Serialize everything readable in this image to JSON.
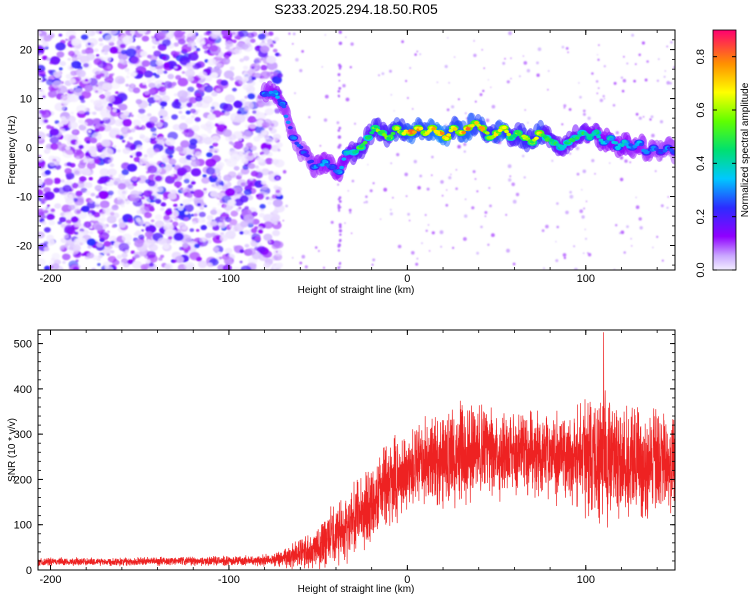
{
  "title": "S233.2025.294.18.50.R05",
  "colors": {
    "spectrum_low": "#9900ff",
    "snr_line": "#ee2222",
    "axes": "#000000"
  },
  "chart_data": [
    {
      "type": "heatmap",
      "name": "spectrogram",
      "xlabel": "Height of straight line (km)",
      "ylabel": "Frequency (Hz)",
      "xlim": [
        -207,
        150
      ],
      "ylim": [
        -25,
        24
      ],
      "xticks": [
        -200,
        -100,
        0,
        100
      ],
      "xticklabels": [
        "-200",
        "-100",
        "0",
        "100"
      ],
      "yticks": [
        -20,
        -10,
        0,
        10,
        20
      ],
      "yticklabels": [
        "-20",
        "-10",
        "0",
        "10",
        "20"
      ],
      "colorbar": {
        "label": "Normalized spectral amplitude",
        "range": [
          0.0,
          0.9
        ],
        "ticks": [
          0.0,
          0.2,
          0.4,
          0.6,
          0.8
        ],
        "ticklabels": [
          "0.0",
          "0.2",
          "0.4",
          "0.6",
          "0.8"
        ]
      },
      "noise_region_km": [
        -207,
        -77
      ],
      "signal_trace": {
        "x": [
          -80,
          -74,
          -70,
          -64,
          -58,
          -52,
          -46,
          -42,
          -38,
          -34,
          -30,
          -26,
          -22,
          -18,
          -14,
          -10,
          -6,
          -2,
          2,
          6,
          10,
          14,
          18,
          22,
          26,
          30,
          34,
          38,
          42,
          46,
          50,
          54,
          58,
          62,
          66,
          70,
          74,
          78,
          82,
          86,
          90,
          94,
          98,
          102,
          106,
          110,
          114,
          118,
          122,
          126,
          130,
          134,
          138,
          142,
          146,
          150
        ],
        "freq_hz": [
          11,
          11,
          9,
          2,
          -1,
          -4,
          -3,
          -4,
          -5,
          -1,
          -1,
          0,
          2,
          4,
          3,
          2,
          4,
          3,
          3,
          4,
          3,
          4,
          3,
          2,
          4,
          3,
          4,
          5,
          4,
          2,
          3,
          4,
          2,
          3,
          2,
          1,
          3,
          2,
          1,
          0,
          1,
          2,
          3,
          2,
          3,
          1,
          2,
          0,
          1,
          0,
          1,
          -1,
          0,
          -1,
          0,
          -1
        ],
        "amplitude": [
          0.3,
          0.35,
          0.3,
          0.3,
          0.25,
          0.3,
          0.35,
          0.3,
          0.35,
          0.4,
          0.5,
          0.55,
          0.5,
          0.6,
          0.55,
          0.6,
          0.7,
          0.65,
          0.8,
          0.75,
          0.7,
          0.8,
          0.85,
          0.8,
          0.7,
          0.75,
          0.8,
          0.7,
          0.75,
          0.6,
          0.7,
          0.8,
          0.55,
          0.6,
          0.65,
          0.6,
          0.75,
          0.5,
          0.55,
          0.45,
          0.5,
          0.45,
          0.5,
          0.4,
          0.45,
          0.35,
          0.4,
          0.35,
          0.4,
          0.3,
          0.35,
          0.3,
          0.3,
          0.25,
          0.3,
          0.25
        ]
      }
    },
    {
      "type": "line",
      "name": "snr",
      "xlabel": "Height of straight line (km)",
      "ylabel": "SNR (10 * v/v)",
      "xlim": [
        -207,
        150
      ],
      "ylim": [
        0,
        530
      ],
      "xticks": [
        -200,
        -100,
        0,
        100
      ],
      "xticklabels": [
        "-200",
        "-100",
        "0",
        "100"
      ],
      "yticks": [
        0,
        100,
        200,
        300,
        400,
        500
      ],
      "yticklabels": [
        "0",
        "100",
        "200",
        "300",
        "400",
        "500"
      ],
      "envelope": {
        "x": [
          -207,
          -100,
          -77,
          -60,
          -50,
          -40,
          -30,
          -20,
          -10,
          0,
          10,
          20,
          30,
          40,
          50,
          60,
          70,
          80,
          90,
          100,
          110,
          120,
          130,
          140,
          150
        ],
        "mean": [
          18,
          20,
          22,
          35,
          55,
          80,
          110,
          150,
          190,
          215,
          235,
          250,
          255,
          265,
          260,
          262,
          258,
          255,
          250,
          255,
          250,
          245,
          240,
          235,
          230
        ],
        "spread": [
          10,
          12,
          15,
          40,
          60,
          80,
          90,
          100,
          110,
          110,
          110,
          120,
          130,
          120,
          120,
          115,
          110,
          110,
          120,
          150,
          170,
          160,
          150,
          140,
          130
        ]
      },
      "peak": {
        "x": 110,
        "y": 525
      }
    }
  ]
}
